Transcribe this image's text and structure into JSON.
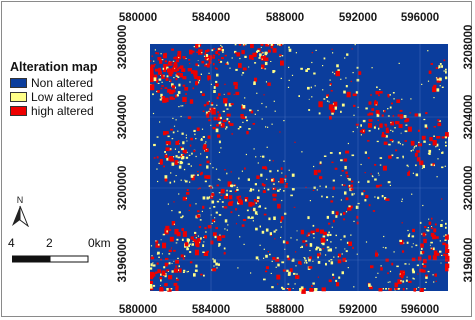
{
  "legend": {
    "title": "Alteration map",
    "items": [
      {
        "label": "Non altered",
        "color": "#0b3d9c"
      },
      {
        "label": "Low altered",
        "color": "#ffff88"
      },
      {
        "label": "high altered",
        "color": "#ee0000"
      }
    ]
  },
  "north_arrow": {
    "label": "N",
    "icon": "north-arrow-icon"
  },
  "scale_bar": {
    "labels": [
      "4",
      "2",
      "0km"
    ]
  },
  "axes": {
    "x_ticks": [
      "580000",
      "584000",
      "588000",
      "592000",
      "596000"
    ],
    "y_ticks": [
      "3208000",
      "3204000",
      "3200000",
      "3196000"
    ],
    "right_ticks": [
      "3208000",
      "3204000",
      "3200000",
      "3196000"
    ]
  },
  "colors": {
    "background": "#0b3d9c",
    "low": "#ffff88",
    "high": "#ee0000",
    "grid": "#5a7fc8"
  }
}
